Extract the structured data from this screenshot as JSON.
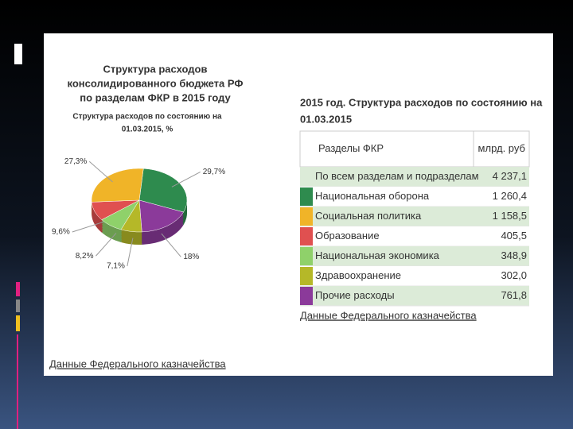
{
  "chart_data": {
    "type": "pie",
    "title": [
      "Структура расходов",
      "консолидированного бюджета РФ",
      "по разделам ФКР в 2015 году"
    ],
    "subtitle": [
      "Структура расходов по состоянию на",
      "01.03.2015, %"
    ],
    "values": [
      29.7,
      18,
      7.1,
      8.2,
      9.6,
      27.3
    ],
    "value_labels": [
      "29,7%",
      "18%",
      "7,1%",
      "8,2%",
      "9,6%",
      "27,3%"
    ],
    "colors": [
      "#2e8b4e",
      "#8b3a9a",
      "#b5b828",
      "#8fd16a",
      "#e05050",
      "#f0b428"
    ],
    "source": "Данные Федерального казначейства"
  },
  "table": {
    "title": [
      "2015 год. Структура расходов по состоянию на",
      "01.03.2015"
    ],
    "header": [
      "Разделы ФКР",
      "млрд. руб"
    ],
    "rows": [
      {
        "name": "По всем разделам и подразделам",
        "value": "4 237,1"
      },
      {
        "name": "Национальная оборона",
        "value": "1 260,4",
        "color": "#2e8b4e"
      },
      {
        "name": "Социальная политика",
        "value": "1 158,5",
        "color": "#f0b428"
      },
      {
        "name": "Образование",
        "value": "405,5",
        "color": "#e05050"
      },
      {
        "name": "Национальная экономика",
        "value": "348,9",
        "color": "#8fd16a"
      },
      {
        "name": "Здравоохранение",
        "value": "302,0",
        "color": "#b5b828"
      },
      {
        "name": "Прочие расходы",
        "value": "761,8",
        "color": "#8b3a9a"
      }
    ],
    "source": "Данные Федерального казначейства"
  }
}
